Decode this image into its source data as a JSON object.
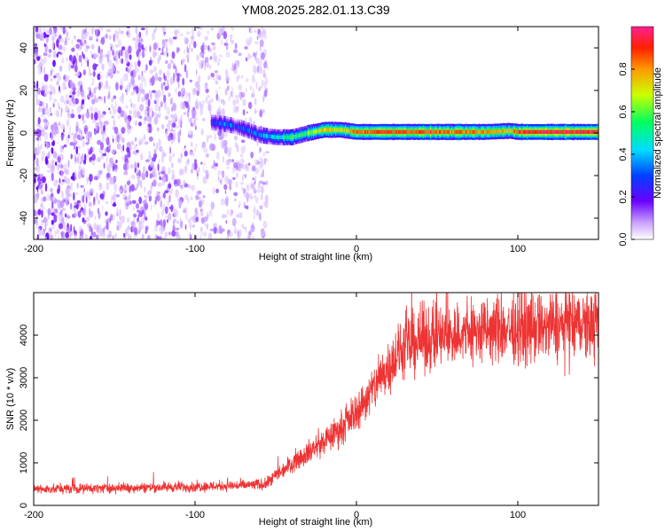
{
  "chart_data": [
    {
      "type": "heatmap",
      "title": "YM08.2025.282.01.13.C39",
      "xlabel": "Height of straight line (km)",
      "ylabel": "Frequency (Hz)",
      "xlim": [
        -200,
        150
      ],
      "ylim": [
        -50,
        50
      ],
      "x_ticks": [
        -200,
        -100,
        0,
        100
      ],
      "y_ticks": [
        -40,
        -20,
        0,
        20,
        40
      ],
      "colorbar": {
        "label": "Normalized spectral amplitude",
        "range": [
          0,
          1
        ],
        "ticks": [
          0.0,
          0.2,
          0.4,
          0.6,
          0.8
        ]
      },
      "noise_region": {
        "x_from": -200,
        "x_to": -55
      },
      "signal_track": [
        {
          "x": -90,
          "freq": 5,
          "amp": 0.25
        },
        {
          "x": -80,
          "freq": 4,
          "amp": 0.35
        },
        {
          "x": -70,
          "freq": 2,
          "amp": 0.3
        },
        {
          "x": -60,
          "freq": -1,
          "amp": 0.35
        },
        {
          "x": -50,
          "freq": -2,
          "amp": 0.45
        },
        {
          "x": -40,
          "freq": -2,
          "amp": 0.55
        },
        {
          "x": -30,
          "freq": 0,
          "amp": 0.6
        },
        {
          "x": -20,
          "freq": 1.5,
          "amp": 0.75
        },
        {
          "x": -10,
          "freq": 1.5,
          "amp": 0.7
        },
        {
          "x": 0,
          "freq": 0.5,
          "amp": 0.85
        },
        {
          "x": 20,
          "freq": 0.5,
          "amp": 0.9
        },
        {
          "x": 50,
          "freq": 0.5,
          "amp": 0.85
        },
        {
          "x": 80,
          "freq": 0.5,
          "amp": 0.8
        },
        {
          "x": 95,
          "freq": 1,
          "amp": 0.75
        },
        {
          "x": 100,
          "freq": 0.5,
          "amp": 0.9
        },
        {
          "x": 120,
          "freq": 0.5,
          "amp": 0.95
        },
        {
          "x": 150,
          "freq": 0.5,
          "amp": 0.95
        }
      ]
    },
    {
      "type": "line",
      "title": "",
      "xlabel": "Height of straight line (km)",
      "ylabel": "SNR (10 * v/v)",
      "xlim": [
        -200,
        150
      ],
      "ylim": [
        0,
        5000
      ],
      "x_ticks": [
        -200,
        -100,
        0,
        100
      ],
      "y_ticks": [
        0,
        1000,
        2000,
        3000,
        4000
      ],
      "color": "#ee3333",
      "series": [
        {
          "name": "SNR",
          "x": [
            -200,
            -150,
            -100,
            -70,
            -56,
            -50,
            -40,
            -30,
            -20,
            -10,
            0,
            10,
            20,
            30,
            40,
            50,
            60,
            80,
            100,
            120,
            150
          ],
          "values": [
            380,
            410,
            440,
            470,
            500,
            700,
            1000,
            1250,
            1500,
            1800,
            2200,
            2700,
            3300,
            3700,
            3900,
            3950,
            4000,
            4100,
            4150,
            4200,
            4250
          ]
        }
      ]
    }
  ]
}
